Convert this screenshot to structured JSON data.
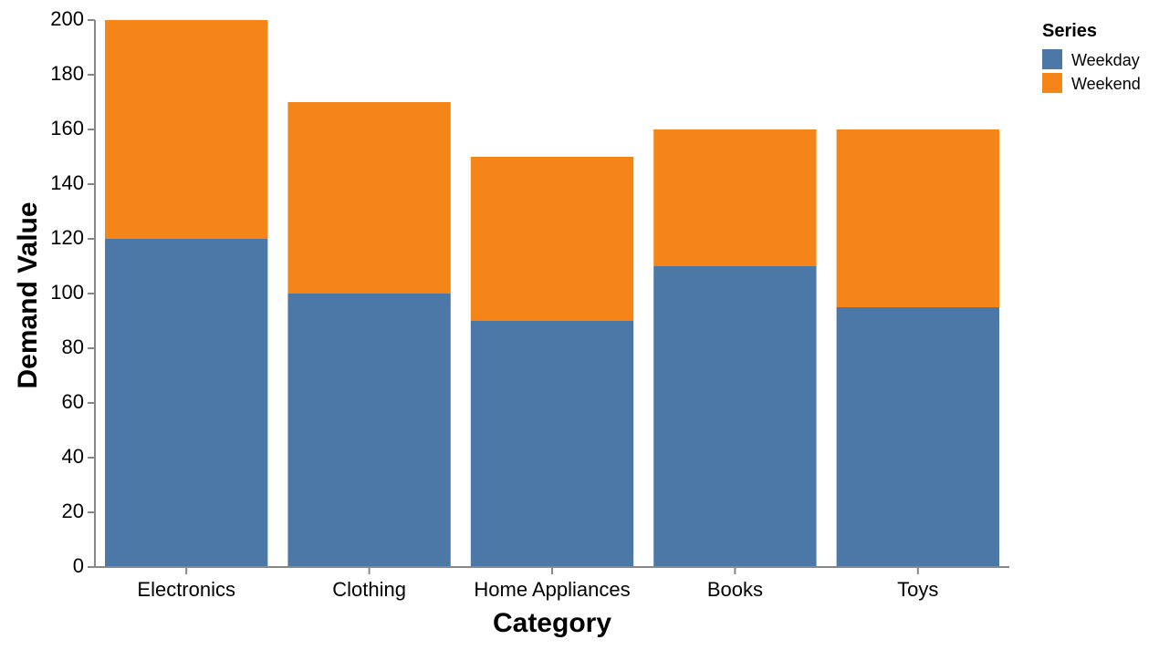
{
  "chart_data": {
    "type": "bar",
    "stacked": true,
    "categories": [
      "Electronics",
      "Clothing",
      "Home Appliances",
      "Books",
      "Toys"
    ],
    "series": [
      {
        "name": "Weekday",
        "color": "#4c78a8",
        "values": [
          120,
          100,
          90,
          110,
          95
        ]
      },
      {
        "name": "Weekend",
        "color": "#f58518",
        "values": [
          80,
          70,
          60,
          50,
          65
        ]
      }
    ],
    "xlabel": "Category",
    "ylabel": "Demand Value",
    "ylim": [
      0,
      200
    ],
    "yticks": [
      0,
      20,
      40,
      60,
      80,
      100,
      120,
      140,
      160,
      180,
      200
    ],
    "grid": false,
    "legend": {
      "title": "Series",
      "position": "top-right"
    }
  }
}
